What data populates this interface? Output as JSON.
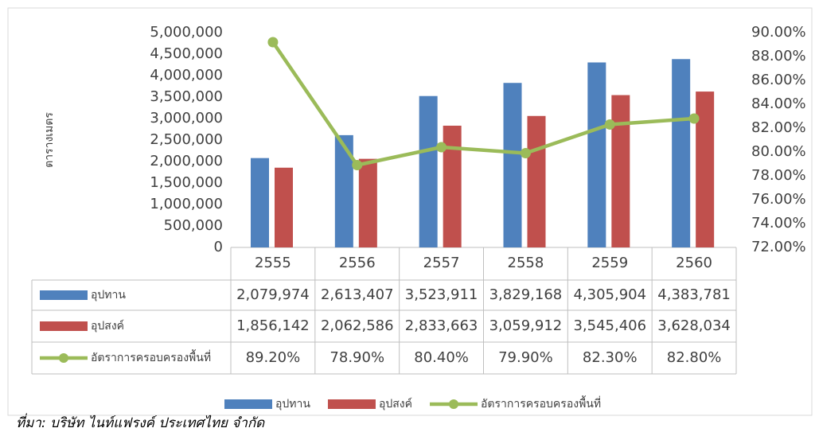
{
  "chart_data": {
    "type": "bar",
    "y_axis_label": "ตารางเมตร",
    "source": "ที่มา: บริษัท ไนท์แฟรงค์ ประเทศไทย จำกัด",
    "categories": [
      "2555",
      "2556",
      "2557",
      "2558",
      "2559",
      "2560"
    ],
    "series": [
      {
        "name": "อุปทาน",
        "color": "#4f81bd",
        "type": "bar",
        "values": [
          2079974,
          2613407,
          3523911,
          3829168,
          4305904,
          4383781
        ],
        "value_labels": [
          "2,079,974",
          "2,613,407",
          "3,523,911",
          "3,829,168",
          "4,305,904",
          "4,383,781"
        ]
      },
      {
        "name": "อุปสงค์",
        "color": "#c0504d",
        "type": "bar",
        "values": [
          1856142,
          2062586,
          2833663,
          3059912,
          3545406,
          3628034
        ],
        "value_labels": [
          "1,856,142",
          "2,062,586",
          "2,833,663",
          "3,059,912",
          "3,545,406",
          "3,628,034"
        ]
      },
      {
        "name": "อัตราการครอบครองพื้นที่",
        "color": "#9bbb59",
        "type": "line",
        "axis": "y2",
        "values": [
          89.2,
          78.9,
          80.4,
          79.9,
          82.3,
          82.8
        ],
        "value_labels": [
          "89.20%",
          "78.90%",
          "80.40%",
          "79.90%",
          "82.30%",
          "82.80%"
        ]
      }
    ],
    "ylim": [
      0,
      5000000
    ],
    "yticks": [
      0,
      {
        "value": 500000,
        "label": "500,000"
      },
      {
        "value": 1000000,
        "label": "1,000,000"
      },
      {
        "value": 1500000,
        "label": "1,500,000"
      },
      {
        "value": 2000000,
        "label": "2,000,000"
      },
      {
        "value": 2500000,
        "label": "2,500,000"
      },
      {
        "value": 3000000,
        "label": "3,000,000"
      },
      {
        "value": 3500000,
        "label": "3,500,000"
      },
      {
        "value": 4000000,
        "label": "4,000,000"
      },
      {
        "value": 4500000,
        "label": "4,500,000"
      },
      {
        "value": 5000000,
        "label": "5,000,000"
      }
    ],
    "y2lim": [
      72,
      90
    ],
    "y2ticks": [
      {
        "value": 72,
        "label": "72.00%"
      },
      {
        "value": 74,
        "label": "74.00%"
      },
      {
        "value": 76,
        "label": "76.00%"
      },
      {
        "value": 78,
        "label": "78.00%"
      },
      {
        "value": 80,
        "label": "80.00%"
      },
      {
        "value": 82,
        "label": "82.00%"
      },
      {
        "value": 84,
        "label": "84.00%"
      },
      {
        "value": 86,
        "label": "86.00%"
      },
      {
        "value": 88,
        "label": "88.00%"
      },
      {
        "value": 90,
        "label": "90.00%"
      }
    ],
    "grid": false
  }
}
